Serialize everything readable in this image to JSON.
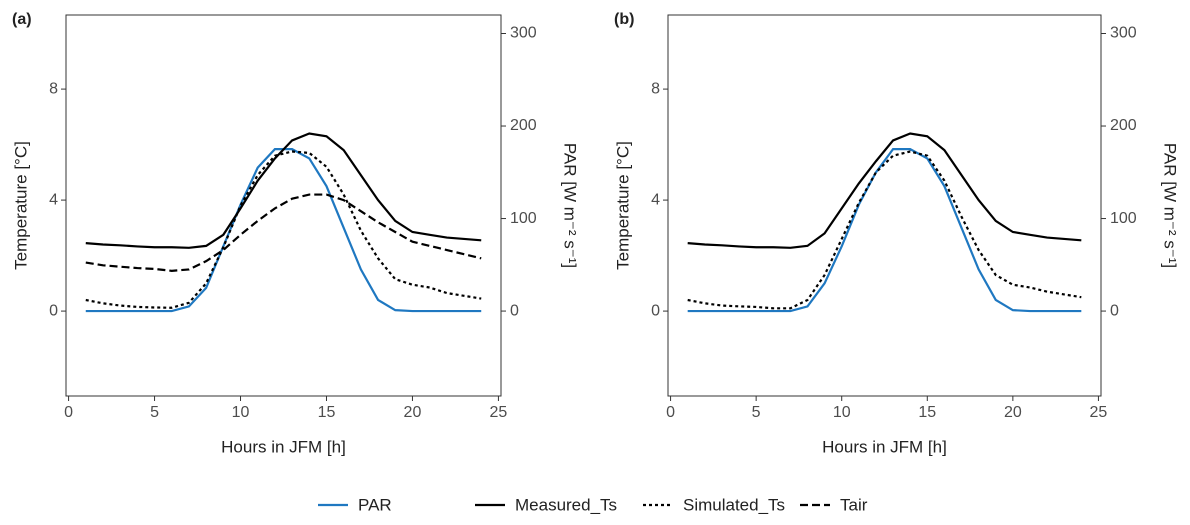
{
  "chart_data": [
    {
      "type": "line",
      "title": "(a)",
      "x_label": "Hours in JFM [h]",
      "y_label": "Temperature [°C]",
      "y2_label": "PAR [W m⁻² s⁻¹]",
      "x": [
        1,
        2,
        3,
        4,
        5,
        6,
        7,
        8,
        9,
        10,
        11,
        12,
        13,
        14,
        15,
        16,
        17,
        18,
        19,
        20,
        21,
        22,
        23,
        24
      ],
      "xlim": [
        -0.15,
        25.15
      ],
      "xticks": [
        0,
        5,
        10,
        15,
        20,
        25
      ],
      "ylim": [
        -3.06,
        10.67
      ],
      "yticks": [
        0,
        4,
        8
      ],
      "y2lim": [
        -91.8,
        320
      ],
      "y2ticks": [
        0,
        100,
        200,
        300
      ],
      "series": [
        {
          "name": "PAR",
          "color": "#1f78c1",
          "dash": "solid",
          "axis": "y2",
          "values": [
            0,
            0,
            0,
            0,
            0,
            0,
            5,
            25,
            70,
            115,
            155,
            175,
            175,
            165,
            135,
            90,
            45,
            12,
            1,
            0,
            0,
            0,
            0,
            0
          ]
        },
        {
          "name": "Measured_Ts",
          "color": "#000000",
          "dash": "solid",
          "values": [
            2.45,
            2.4,
            2.37,
            2.33,
            2.3,
            2.3,
            2.28,
            2.35,
            2.75,
            3.7,
            4.7,
            5.5,
            6.15,
            6.4,
            6.3,
            5.8,
            4.9,
            4.0,
            3.25,
            2.85,
            2.75,
            2.65,
            2.6,
            2.55
          ]
        },
        {
          "name": "Simulated_Ts",
          "color": "#000000",
          "dash": "dotted",
          "values": [
            0.4,
            0.28,
            0.2,
            0.15,
            0.13,
            0.12,
            0.3,
            1.0,
            2.3,
            3.8,
            4.9,
            5.6,
            5.75,
            5.7,
            5.2,
            4.2,
            2.9,
            1.9,
            1.15,
            0.95,
            0.85,
            0.65,
            0.55,
            0.45
          ]
        },
        {
          "name": "Tair",
          "color": "#000000",
          "dash": "dashed",
          "values": [
            1.75,
            1.65,
            1.6,
            1.55,
            1.52,
            1.45,
            1.5,
            1.8,
            2.2,
            2.75,
            3.25,
            3.7,
            4.05,
            4.2,
            4.2,
            4.0,
            3.6,
            3.2,
            2.85,
            2.5,
            2.35,
            2.2,
            2.05,
            1.9
          ]
        }
      ]
    },
    {
      "type": "line",
      "title": "(b)",
      "x_label": "Hours in JFM [h]",
      "y_label": "Temperature [°C]",
      "y2_label": "PAR [W m⁻² s⁻¹]",
      "x": [
        1,
        2,
        3,
        4,
        5,
        6,
        7,
        8,
        9,
        10,
        11,
        12,
        13,
        14,
        15,
        16,
        17,
        18,
        19,
        20,
        21,
        22,
        23,
        24
      ],
      "xlim": [
        -0.15,
        25.15
      ],
      "xticks": [
        0,
        5,
        10,
        15,
        20,
        25
      ],
      "ylim": [
        -3.06,
        10.67
      ],
      "yticks": [
        0,
        4,
        8
      ],
      "y2lim": [
        -91.8,
        320
      ],
      "y2ticks": [
        0,
        100,
        200,
        300
      ],
      "series": [
        {
          "color": "#1f78c1",
          "dash": "solid",
          "axis": "y2",
          "values": [
            0,
            0,
            0,
            0,
            0,
            0,
            0,
            5,
            30,
            70,
            115,
            150,
            175,
            175,
            165,
            135,
            90,
            45,
            12,
            1,
            0,
            0,
            0,
            0
          ]
        },
        {
          "color": "#000000",
          "dash": "solid",
          "values": [
            2.45,
            2.4,
            2.37,
            2.33,
            2.3,
            2.3,
            2.28,
            2.35,
            2.8,
            3.7,
            4.6,
            5.4,
            6.15,
            6.4,
            6.3,
            5.8,
            4.9,
            4.0,
            3.25,
            2.85,
            2.75,
            2.65,
            2.6,
            2.55
          ]
        },
        {
          "color": "#000000",
          "dash": "dotted",
          "values": [
            0.4,
            0.28,
            0.2,
            0.17,
            0.15,
            0.1,
            0.1,
            0.4,
            1.3,
            2.6,
            3.9,
            5.0,
            5.6,
            5.75,
            5.6,
            4.7,
            3.4,
            2.2,
            1.3,
            0.95,
            0.85,
            0.7,
            0.6,
            0.5
          ]
        }
      ]
    }
  ]
}
